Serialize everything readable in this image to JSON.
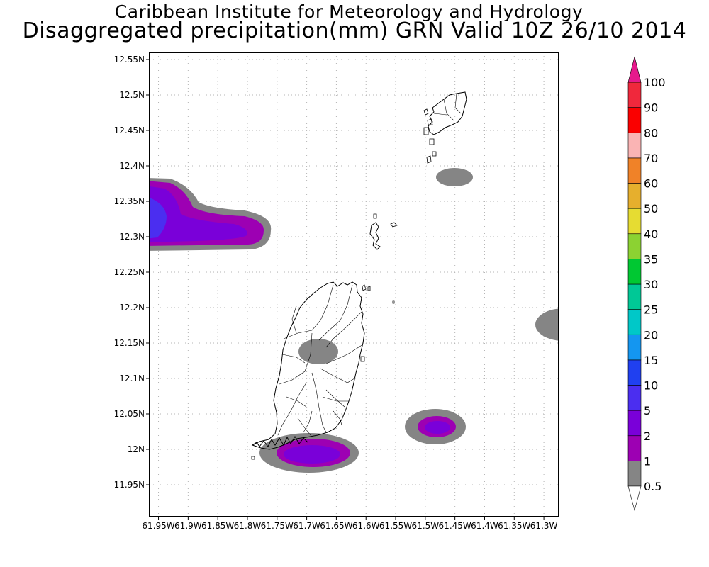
{
  "header": {
    "title_line1": "Caribbean Institute for Meteorology and Hydrology",
    "title_line2": "Disaggregated precipitation(mm) GRN Valid 10Z 26/10 2014"
  },
  "map": {
    "lon_range": [
      -61.965,
      -61.275
    ],
    "lat_range": [
      11.905,
      12.56
    ],
    "x_ticks": [
      {
        "value": -61.95,
        "label": "61.95W"
      },
      {
        "value": -61.9,
        "label": "61.9W"
      },
      {
        "value": -61.85,
        "label": "61.85W"
      },
      {
        "value": -61.8,
        "label": "61.8W"
      },
      {
        "value": -61.75,
        "label": "61.75W"
      },
      {
        "value": -61.7,
        "label": "61.7W"
      },
      {
        "value": -61.65,
        "label": "61.65W"
      },
      {
        "value": -61.6,
        "label": "61.6W"
      },
      {
        "value": -61.55,
        "label": "61.55W"
      },
      {
        "value": -61.5,
        "label": "61.5W"
      },
      {
        "value": -61.45,
        "label": "61.45W"
      },
      {
        "value": -61.4,
        "label": "61.4W"
      },
      {
        "value": -61.35,
        "label": "61.35W"
      },
      {
        "value": -61.3,
        "label": "61.3W"
      }
    ],
    "y_ticks": [
      {
        "value": 12.55,
        "label": "12.55N"
      },
      {
        "value": 12.5,
        "label": "12.5N"
      },
      {
        "value": 12.45,
        "label": "12.45N"
      },
      {
        "value": 12.4,
        "label": "12.4N"
      },
      {
        "value": 12.35,
        "label": "12.35N"
      },
      {
        "value": 12.3,
        "label": "12.3N"
      },
      {
        "value": 12.25,
        "label": "12.25N"
      },
      {
        "value": 12.2,
        "label": "12.2N"
      },
      {
        "value": 12.15,
        "label": "12.15N"
      },
      {
        "value": 12.1,
        "label": "12.1N"
      },
      {
        "value": 12.05,
        "label": "12.05N"
      },
      {
        "value": 12.0,
        "label": "12N"
      },
      {
        "value": 11.95,
        "label": "11.95N"
      }
    ],
    "grid": true,
    "precip_areas": [
      {
        "name": "west-edge-cell",
        "center": [
          -61.985,
          12.33
        ],
        "levels": [
          0.5,
          1,
          2,
          5
        ]
      },
      {
        "name": "south-grenada-cell",
        "center": [
          -61.69,
          11.997
        ],
        "levels": [
          0.5,
          1,
          2
        ]
      },
      {
        "name": "southeast-cell",
        "center": [
          -61.475,
          12.03
        ],
        "levels": [
          0.5,
          1,
          2
        ]
      },
      {
        "name": "central-grenada-cell",
        "center": [
          -61.665,
          12.137
        ],
        "levels": [
          0.5
        ]
      },
      {
        "name": "carriacou-south-cell",
        "center": [
          -61.435,
          12.383
        ],
        "levels": [
          0.5
        ]
      },
      {
        "name": "east-edge-cell",
        "center": [
          -61.265,
          12.175
        ],
        "levels": [
          0.5
        ]
      }
    ]
  },
  "colorbar": {
    "levels": [
      {
        "label": "0.5",
        "color": "#858585"
      },
      {
        "label": "1",
        "color": "#9d00b3"
      },
      {
        "label": "2",
        "color": "#7a00d9"
      },
      {
        "label": "5",
        "color": "#4b2ef0"
      },
      {
        "label": "10",
        "color": "#2040f0"
      },
      {
        "label": "15",
        "color": "#1496f0"
      },
      {
        "label": "20",
        "color": "#00c8c8"
      },
      {
        "label": "25",
        "color": "#00c896"
      },
      {
        "label": "30",
        "color": "#00c832"
      },
      {
        "label": "35",
        "color": "#8cd232"
      },
      {
        "label": "40",
        "color": "#e6dc32"
      },
      {
        "label": "50",
        "color": "#e6af2d"
      },
      {
        "label": "60",
        "color": "#f08228"
      },
      {
        "label": "70",
        "color": "#fab4b4"
      },
      {
        "label": "80",
        "color": "#fa0000"
      },
      {
        "label": "90",
        "color": "#f0283c"
      },
      {
        "label": "100",
        "color": ""
      }
    ],
    "over_color": "#e6198c",
    "under_color": "#ffffff"
  }
}
